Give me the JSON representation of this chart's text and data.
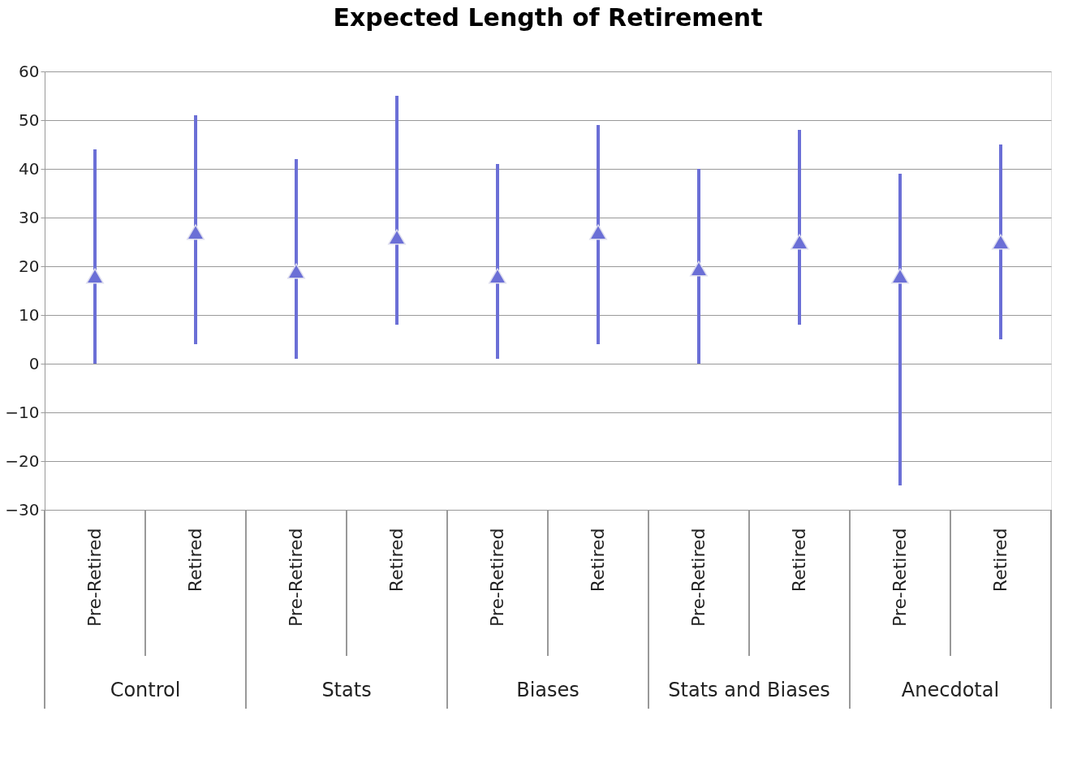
{
  "chart_data": {
    "type": "scatter",
    "title": "Expected Length of Retirement",
    "categories": [
      "Pre-Retired",
      "Retired",
      "Pre-Retired",
      "Retired",
      "Pre-Retired",
      "Retired",
      "Pre-Retired",
      "Retired",
      "Pre-Retired",
      "Retired"
    ],
    "series": [
      {
        "color": "#6b6fd6",
        "values": [
          18,
          27,
          19,
          26,
          18,
          27,
          19.5,
          25,
          18,
          25
        ],
        "errors": [
          [
            0,
            44
          ],
          [
            4,
            51
          ],
          [
            1,
            42
          ],
          [
            8,
            55
          ],
          [
            1,
            41
          ],
          [
            4,
            49
          ],
          [
            0,
            40
          ],
          [
            8,
            48
          ],
          [
            -25,
            39
          ],
          [
            5,
            45
          ]
        ]
      }
    ],
    "annotations": [
      "Control",
      "Stats",
      "Biases",
      "Stats and Biases",
      "Anecdotal"
    ],
    "ylim": [
      -30,
      60
    ],
    "yticks": [
      -30,
      -20,
      -10,
      0,
      10,
      20,
      30,
      40,
      50,
      60
    ],
    "grid": "y",
    "marker": "triangle"
  }
}
